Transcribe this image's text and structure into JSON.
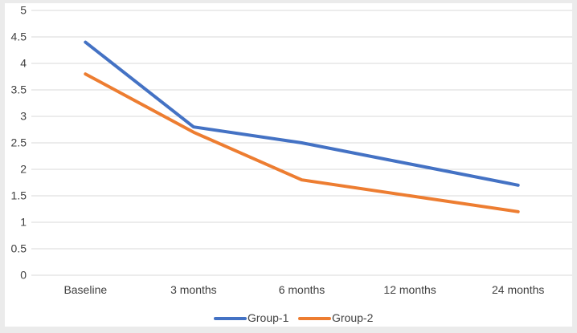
{
  "chart_data": {
    "type": "line",
    "title": "",
    "xlabel": "",
    "ylabel": "",
    "categories": [
      "Baseline",
      "3 months",
      "6 months",
      "12 months",
      "24 months"
    ],
    "series": [
      {
        "name": "Group-1",
        "color": "#4472C4",
        "values": [
          4.4,
          2.8,
          2.5,
          2.1,
          1.7
        ]
      },
      {
        "name": "Group-2",
        "color": "#ED7D31",
        "values": [
          3.8,
          2.7,
          1.8,
          1.5,
          1.2
        ]
      }
    ],
    "ylim": [
      0,
      5
    ],
    "ytick_step": 0.5,
    "ytick_labels": [
      "0",
      "0.5",
      "1",
      "1.5",
      "2",
      "2.5",
      "3",
      "3.5",
      "4",
      "4.5",
      "5"
    ],
    "grid": true,
    "legend_position": "bottom-center",
    "colors": {
      "gridline": "#D9D9D9",
      "axis_text": "#404040",
      "legend_text": "#404040",
      "chart_background": "#FFFFFF",
      "page_background": "#EBEBEB"
    }
  }
}
